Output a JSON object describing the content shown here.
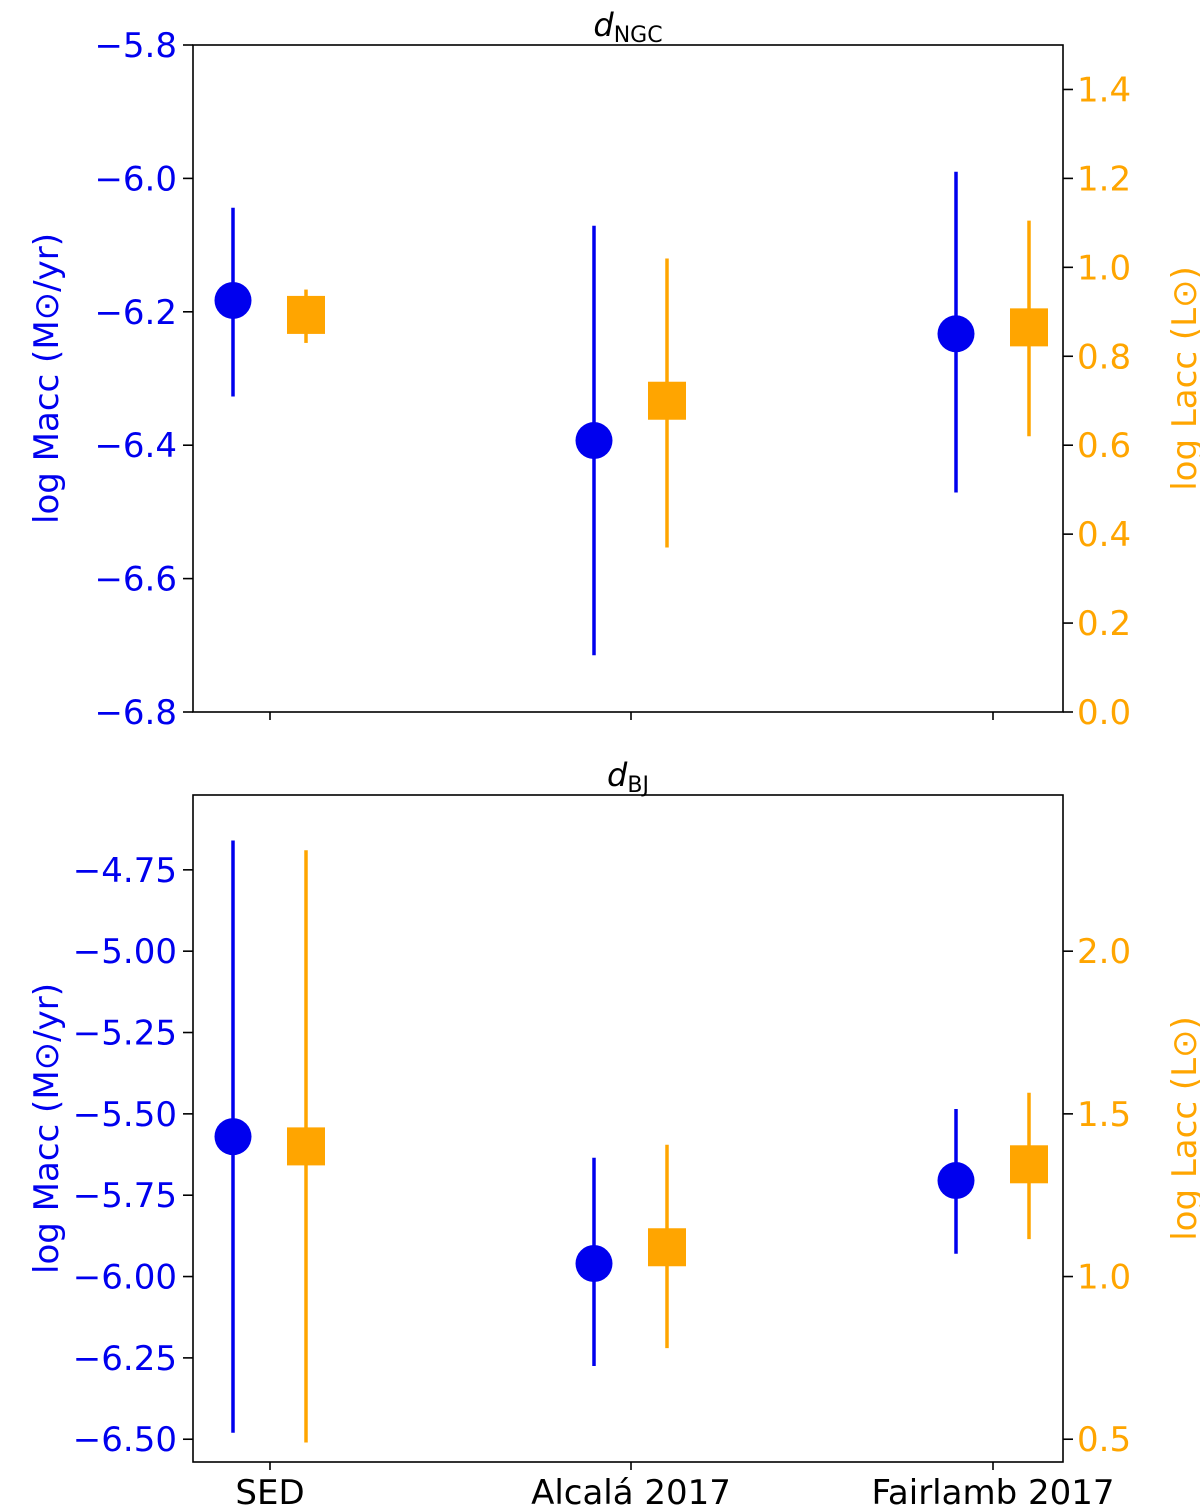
{
  "colors": {
    "left": "#0000ee",
    "right": "#ffa500",
    "axis": "#000000"
  },
  "chart_data": [
    {
      "type": "scatter",
      "title": "dNGC",
      "title_main": "d",
      "title_sub": "NGC",
      "categories": [
        "SED",
        "Alcalá 2017",
        "Fairlamb 2017"
      ],
      "left_axis": {
        "label": "log Macc (M⊙/yr)",
        "ylim": [
          -6.8,
          -5.8
        ],
        "ticks": [
          -5.8,
          -6.0,
          -6.2,
          -6.4,
          -6.6,
          -6.8
        ],
        "tick_labels": [
          "−5.8",
          "−6.0",
          "−6.2",
          "−6.4",
          "−6.6",
          "−6.8"
        ]
      },
      "right_axis": {
        "label": "log Lacc (L⊙)",
        "ylim": [
          0.0,
          1.5
        ],
        "ticks": [
          0.0,
          0.2,
          0.4,
          0.6,
          0.8,
          1.0,
          1.2,
          1.4
        ],
        "tick_labels": [
          "0.0",
          "0.2",
          "0.4",
          "0.6",
          "0.8",
          "1.0",
          "1.2",
          "1.4"
        ]
      },
      "series": [
        {
          "name": "log Macc",
          "axis": "left",
          "marker": "circle",
          "values": [
            -6.183,
            -6.393,
            -6.233
          ],
          "err_low": [
            -6.327,
            -6.715,
            -6.471
          ],
          "err_high": [
            -6.044,
            -6.071,
            -5.99
          ]
        },
        {
          "name": "log Lacc",
          "axis": "right",
          "marker": "square",
          "values": [
            0.893,
            0.7,
            0.865
          ],
          "err_low": [
            0.83,
            0.37,
            0.62
          ],
          "err_high": [
            0.95,
            1.02,
            1.105
          ]
        }
      ]
    },
    {
      "type": "scatter",
      "title": "dBJ",
      "title_main": "d",
      "title_sub": "BJ",
      "categories": [
        "SED",
        "Alcalá 2017",
        "Fairlamb 2017"
      ],
      "left_axis": {
        "label": "log Macc (M⊙/yr)",
        "ylim": [
          -6.57,
          -4.52
        ],
        "ticks": [
          -4.75,
          -5.0,
          -5.25,
          -5.5,
          -5.75,
          -6.0,
          -6.25,
          -6.5
        ],
        "tick_labels": [
          "−4.75",
          "−5.00",
          "−5.25",
          "−5.50",
          "−5.75",
          "−6.00",
          "−6.25",
          "−6.50"
        ]
      },
      "right_axis": {
        "label": "log Lacc (L⊙)",
        "ylim": [
          0.43,
          2.48
        ],
        "ticks": [
          0.5,
          1.0,
          1.5,
          2.0
        ],
        "tick_labels": [
          "0.5",
          "1.0",
          "1.5",
          "2.0"
        ]
      },
      "series": [
        {
          "name": "log Macc",
          "axis": "left",
          "marker": "circle",
          "values": [
            -5.57,
            -5.96,
            -5.705
          ],
          "err_low": [
            -6.48,
            -6.275,
            -5.93
          ],
          "err_high": [
            -4.66,
            -5.635,
            -5.485
          ]
        },
        {
          "name": "log Lacc",
          "axis": "right",
          "marker": "square",
          "values": [
            1.4,
            1.09,
            1.345
          ],
          "err_low": [
            0.49,
            0.78,
            1.115
          ],
          "err_high": [
            2.31,
            1.405,
            1.565
          ]
        }
      ]
    }
  ]
}
